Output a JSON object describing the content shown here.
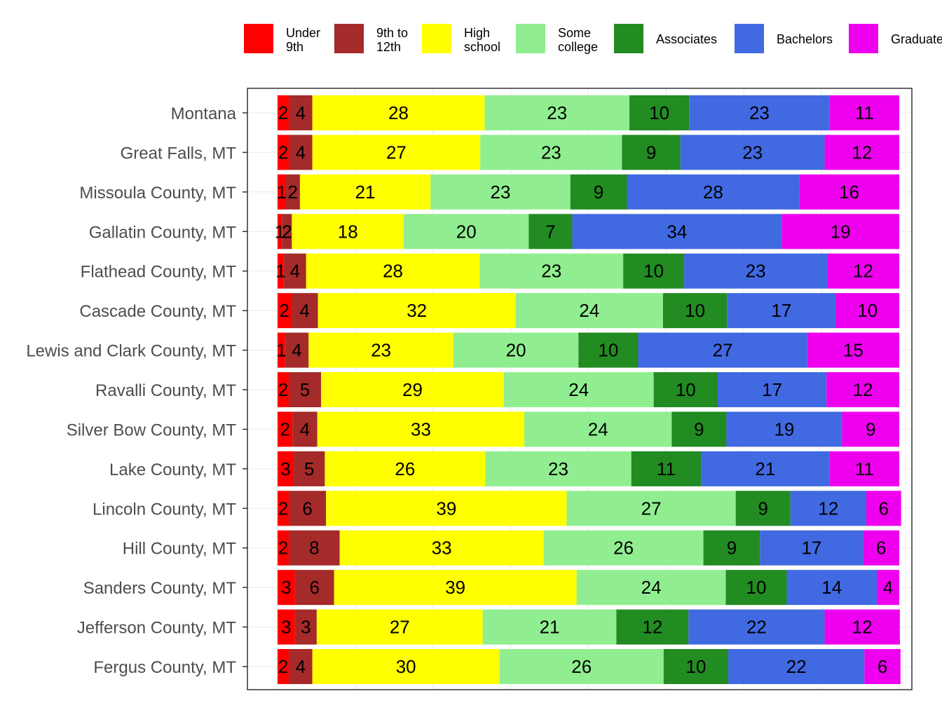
{
  "chart_data": {
    "type": "bar",
    "orientation": "horizontal",
    "stacked": true,
    "title": "",
    "xlabel": "",
    "ylabel": "",
    "xlim": [
      0,
      100
    ],
    "grid": true,
    "legend_position": "top",
    "categories": [
      "Montana",
      "Great Falls, MT",
      "Missoula County, MT",
      "Gallatin County, MT",
      "Flathead County, MT",
      "Cascade County, MT",
      "Lewis and Clark County, MT",
      "Ravalli County, MT",
      "Silver Bow County, MT",
      "Lake County, MT",
      "Lincoln County, MT",
      "Hill County, MT",
      "Sanders County, MT",
      "Jefferson County, MT",
      "Fergus County, MT"
    ],
    "series": [
      {
        "name": "Under 9th",
        "legend_lines": [
          "Under",
          "9th"
        ],
        "color": "#FF0000",
        "values": [
          1.8,
          1.8,
          1.3,
          0.7,
          1.0,
          2.2,
          1.2,
          1.8,
          2.4,
          2.6,
          1.8,
          1.8,
          2.8,
          2.8,
          1.8
        ],
        "labels": [
          "2",
          "2",
          "1",
          "1",
          "1",
          "2",
          "1",
          "2",
          "2",
          "3",
          "2",
          "2",
          "3",
          "3",
          "2"
        ]
      },
      {
        "name": "9th to 12th",
        "legend_lines": [
          "9th to",
          "12th"
        ],
        "color": "#A52A2A",
        "values": [
          3.8,
          3.8,
          2.3,
          1.6,
          3.6,
          4.3,
          3.8,
          5.2,
          4.0,
          5.0,
          6.0,
          8.2,
          6.3,
          3.5,
          3.8
        ],
        "labels": [
          "4",
          "4",
          "2",
          "2",
          "4",
          "4",
          "4",
          "5",
          "4",
          "5",
          "6",
          "8",
          "6",
          "3",
          "4"
        ]
      },
      {
        "name": "High school",
        "legend_lines": [
          "High",
          "school"
        ],
        "color": "#FFFF00",
        "values": [
          27.7,
          27.0,
          21.0,
          18.0,
          27.9,
          31.8,
          23.3,
          29.4,
          33.3,
          25.8,
          38.7,
          32.8,
          39.0,
          26.7,
          30.1
        ],
        "labels": [
          "28",
          "27",
          "21",
          "18",
          "28",
          "32",
          "23",
          "29",
          "33",
          "26",
          "39",
          "33",
          "39",
          "27",
          "30"
        ]
      },
      {
        "name": "Some college",
        "legend_lines": [
          "Some",
          "college"
        ],
        "color": "#90EE90",
        "values": [
          23.3,
          22.8,
          22.5,
          20.1,
          23.1,
          23.7,
          20.1,
          24.1,
          23.7,
          23.5,
          27.2,
          25.7,
          24.0,
          21.5,
          26.4
        ],
        "labels": [
          "23",
          "23",
          "23",
          "20",
          "23",
          "24",
          "20",
          "24",
          "24",
          "23",
          "27",
          "26",
          "24",
          "21",
          "26"
        ]
      },
      {
        "name": "Associates",
        "legend_lines": [
          "Associates"
        ],
        "color": "#228B22",
        "values": [
          9.6,
          9.4,
          9.1,
          7.0,
          9.8,
          10.3,
          9.6,
          10.3,
          8.8,
          11.2,
          8.8,
          9.1,
          9.8,
          11.6,
          10.4
        ],
        "labels": [
          "10",
          "9",
          "9",
          "7",
          "10",
          "10",
          "10",
          "10",
          "9",
          "11",
          "9",
          "9",
          "10",
          "12",
          "10"
        ]
      },
      {
        "name": "Bachelors",
        "legend_lines": [
          "Bachelors"
        ],
        "color": "#4169E1",
        "values": [
          22.6,
          23.2,
          27.7,
          33.7,
          23.0,
          17.5,
          27.2,
          17.5,
          18.6,
          20.7,
          12.2,
          16.6,
          14.5,
          21.9,
          21.9
        ],
        "labels": [
          "23",
          "23",
          "28",
          "34",
          "23",
          "17",
          "27",
          "17",
          "19",
          "21",
          "12",
          "17",
          "14",
          "22",
          "22"
        ]
      },
      {
        "name": "Graduate",
        "legend_lines": [
          "Graduate"
        ],
        "color": "#EE00EE",
        "values": [
          11.2,
          12.0,
          16.1,
          18.9,
          11.6,
          10.2,
          14.8,
          11.7,
          9.2,
          11.2,
          5.6,
          5.8,
          3.6,
          12.1,
          5.8
        ],
        "labels": [
          "11",
          "12",
          "16",
          "19",
          "12",
          "10",
          "15",
          "12",
          "9",
          "11",
          "6",
          "6",
          "4",
          "12",
          "6"
        ]
      }
    ]
  }
}
